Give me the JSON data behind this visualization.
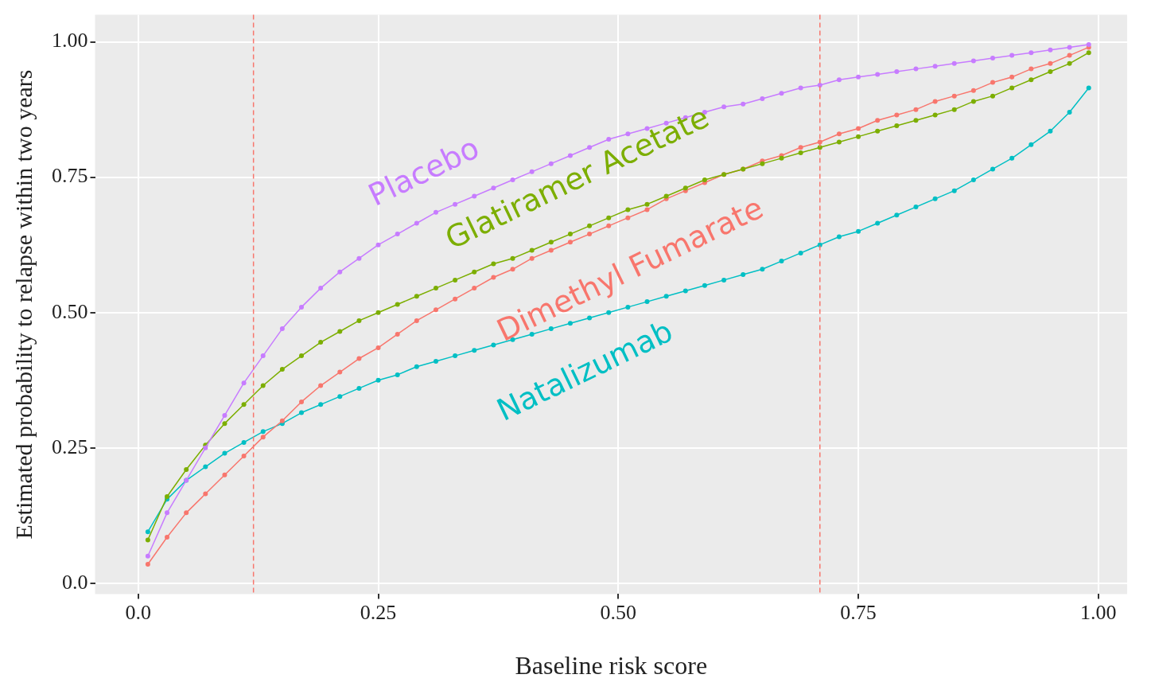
{
  "chart_data": {
    "type": "line",
    "xlabel": "Baseline risk score",
    "ylabel": "Estimated probability to relapse within two years",
    "x": [
      0.01,
      0.03,
      0.05,
      0.07,
      0.09,
      0.11,
      0.13,
      0.15,
      0.17,
      0.19,
      0.21,
      0.23,
      0.25,
      0.27,
      0.29,
      0.31,
      0.33,
      0.35,
      0.37,
      0.39,
      0.41,
      0.43,
      0.45,
      0.47,
      0.49,
      0.51,
      0.53,
      0.55,
      0.57,
      0.59,
      0.61,
      0.63,
      0.65,
      0.67,
      0.69,
      0.71,
      0.73,
      0.75,
      0.77,
      0.79,
      0.81,
      0.83,
      0.85,
      0.87,
      0.89,
      0.91,
      0.93,
      0.95,
      0.97,
      0.99
    ],
    "series": [
      {
        "name": "Placebo",
        "color": "#c77cff",
        "values": [
          0.05,
          0.13,
          0.19,
          0.25,
          0.31,
          0.37,
          0.42,
          0.47,
          0.51,
          0.545,
          0.575,
          0.6,
          0.625,
          0.645,
          0.665,
          0.685,
          0.7,
          0.715,
          0.73,
          0.745,
          0.76,
          0.775,
          0.79,
          0.805,
          0.82,
          0.83,
          0.84,
          0.85,
          0.86,
          0.87,
          0.88,
          0.885,
          0.895,
          0.905,
          0.915,
          0.92,
          0.93,
          0.935,
          0.94,
          0.945,
          0.95,
          0.955,
          0.96,
          0.965,
          0.97,
          0.975,
          0.98,
          0.985,
          0.99,
          0.995
        ]
      },
      {
        "name": "Glatiramer Acetate",
        "color": "#7cae00",
        "values": [
          0.08,
          0.16,
          0.21,
          0.255,
          0.295,
          0.33,
          0.365,
          0.395,
          0.42,
          0.445,
          0.465,
          0.485,
          0.5,
          0.515,
          0.53,
          0.545,
          0.56,
          0.575,
          0.59,
          0.6,
          0.615,
          0.63,
          0.645,
          0.66,
          0.675,
          0.69,
          0.7,
          0.715,
          0.73,
          0.745,
          0.755,
          0.765,
          0.775,
          0.785,
          0.795,
          0.805,
          0.815,
          0.825,
          0.835,
          0.845,
          0.855,
          0.865,
          0.875,
          0.89,
          0.9,
          0.915,
          0.93,
          0.945,
          0.96,
          0.98
        ]
      },
      {
        "name": "Dimethyl Fumarate",
        "color": "#f8766d",
        "values": [
          0.035,
          0.085,
          0.13,
          0.165,
          0.2,
          0.235,
          0.27,
          0.3,
          0.335,
          0.365,
          0.39,
          0.415,
          0.435,
          0.46,
          0.485,
          0.505,
          0.525,
          0.545,
          0.565,
          0.58,
          0.6,
          0.615,
          0.63,
          0.645,
          0.66,
          0.675,
          0.69,
          0.71,
          0.725,
          0.74,
          0.755,
          0.765,
          0.78,
          0.79,
          0.805,
          0.815,
          0.83,
          0.84,
          0.855,
          0.865,
          0.875,
          0.89,
          0.9,
          0.91,
          0.925,
          0.935,
          0.95,
          0.96,
          0.975,
          0.99
        ]
      },
      {
        "name": "Natalizumab",
        "color": "#00bfc4",
        "values": [
          0.095,
          0.155,
          0.19,
          0.215,
          0.24,
          0.26,
          0.28,
          0.295,
          0.315,
          0.33,
          0.345,
          0.36,
          0.375,
          0.385,
          0.4,
          0.41,
          0.42,
          0.43,
          0.44,
          0.45,
          0.46,
          0.47,
          0.48,
          0.49,
          0.5,
          0.51,
          0.52,
          0.53,
          0.54,
          0.55,
          0.56,
          0.57,
          0.58,
          0.595,
          0.61,
          0.625,
          0.64,
          0.65,
          0.665,
          0.68,
          0.695,
          0.71,
          0.725,
          0.745,
          0.765,
          0.785,
          0.81,
          0.835,
          0.87,
          0.915
        ]
      }
    ],
    "xlim": [
      -0.045,
      1.03
    ],
    "ylim": [
      -0.02,
      1.05
    ],
    "xticks": [
      {
        "value": 0,
        "label": "0.0"
      },
      0.25,
      {
        "value": 0.5,
        "label": "0.50"
      },
      0.75,
      {
        "value": 1,
        "label": "1.00"
      }
    ],
    "yticks": [
      {
        "value": 0,
        "label": "0.0"
      },
      0.25,
      {
        "value": 0.5,
        "label": "0.50"
      },
      0.75,
      {
        "value": 1,
        "label": "1.00"
      }
    ],
    "ref_lines": [
      {
        "axis": "x",
        "value": 0.12,
        "color": "#f8766d",
        "line_style": "dashed"
      },
      {
        "axis": "x",
        "value": 0.71,
        "color": "#f8766d",
        "line_style": "dashed"
      }
    ],
    "grid": true,
    "legend": false,
    "marker": "circle",
    "line_style": "solid"
  }
}
